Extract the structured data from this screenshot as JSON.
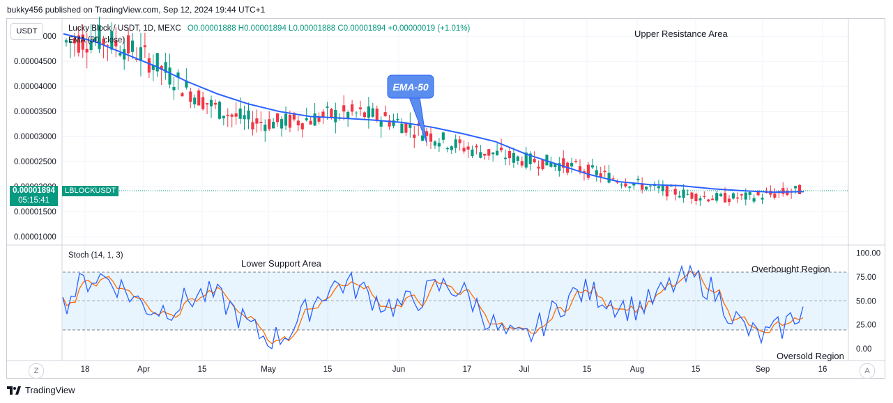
{
  "header": {
    "publisher": "bukky456 published on TradingView.com, Sep 12, 2024 19:44 UTC+1"
  },
  "currency_button": "USDT",
  "legend": {
    "symbol": "Lucky Block / USDT, 1D, MEXC",
    "ohlc": "O0.00001888 H0.00001894 L0.00001888 C0.00001894 +0.00000019 (+1.01%)",
    "ema": "EMA (50, close)"
  },
  "annotations": {
    "upper_resistance": "Upper Resistance Area",
    "ema_callout": "EMA-50",
    "lower_support": "Lower Support Area",
    "overbought": "Overbought Region",
    "oversold": "Oversold Region"
  },
  "price_tag": {
    "price": "0.00001894",
    "symbol": "LBLOCKUSDT",
    "countdown": "05:15:41"
  },
  "stoch_label": "Stoch (14, 1, 3)",
  "time_buttons": {
    "left": "Z",
    "right": "A"
  },
  "footer": {
    "brand": "TradingView"
  },
  "colors": {
    "up": "#089981",
    "down": "#f23645",
    "ema": "#2962ff",
    "stoch_k": "#2962ff",
    "stoch_d": "#ff6d00",
    "band": "#2196f3"
  },
  "chart_data": [
    {
      "type": "candlestick",
      "title": "Lucky Block / USDT, 1D, MEXC",
      "y_ticks": [
        "0.00005000",
        "0.00004500",
        "0.00004000",
        "0.00003500",
        "0.00003000",
        "0.00002500",
        "0.00002000",
        "0.00001500",
        "0.00001000"
      ],
      "x_ticks": [
        "18",
        "Apr",
        "15",
        "May",
        "15",
        "Jun",
        "17",
        "Jul",
        "15",
        "Aug",
        "15",
        "Sep",
        "16"
      ],
      "ylim": [
        8.5e-06,
        5.35e-05
      ],
      "series": [
        {
          "name": "EMA (50, close)",
          "values": [
            5.05e-05,
            4.9e-05,
            4.65e-05,
            4.4e-05,
            4.1e-05,
            3.85e-05,
            3.65e-05,
            3.5e-05,
            3.4e-05,
            3.37e-05,
            3.33e-05,
            3.28e-05,
            3.18e-05,
            3.05e-05,
            2.9e-05,
            2.65e-05,
            2.45e-05,
            2.25e-05,
            2.1e-05,
            2.04e-05,
            2.02e-05,
            1.96e-05,
            1.92e-05,
            1.89e-05,
            1.9e-05
          ]
        }
      ],
      "last_close": 1.894e-05
    },
    {
      "type": "line",
      "title": "Stoch (14, 1, 3)",
      "y_ticks": [
        "100.00",
        "75.00",
        "50.00",
        "25.00",
        "0.00"
      ],
      "ylim": [
        0,
        100
      ],
      "overbought": 80,
      "oversold": 20
    }
  ]
}
